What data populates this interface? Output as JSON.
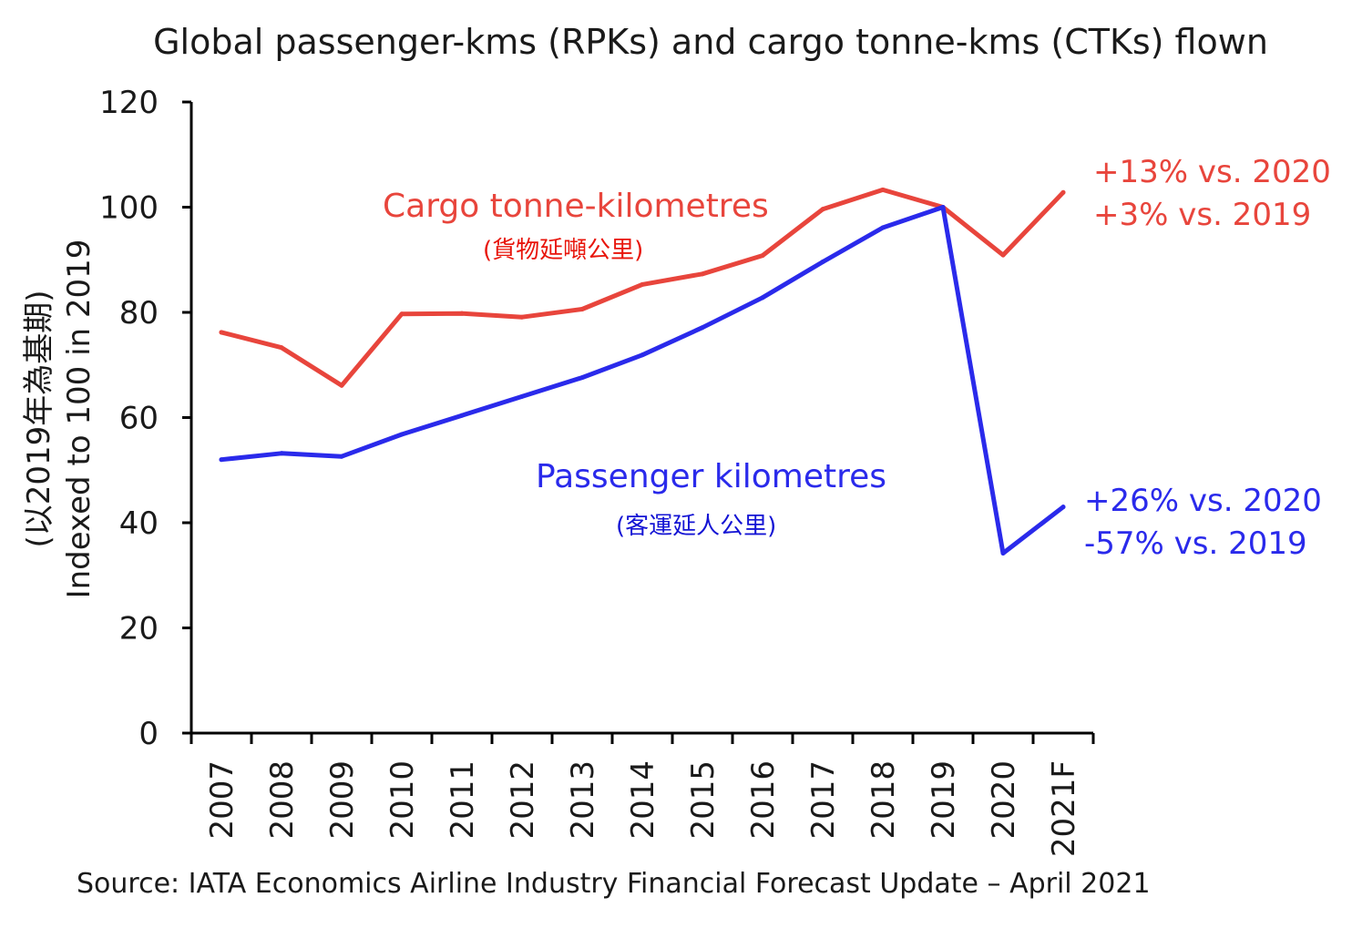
{
  "chart_data": {
    "type": "line",
    "title": "Global passenger-kms (RPKs) and cargo tonne-kms (CTKs) flown",
    "ylabel": "(以2019年為基期) Indexed to 100 in 2019",
    "ylabel_lines": [
      "(以2019年為基期)",
      "Indexed to 100 in 2019"
    ],
    "ylim": [
      0,
      120
    ],
    "yticks": [
      0,
      20,
      40,
      60,
      80,
      100,
      120
    ],
    "categories": [
      "2007",
      "2008",
      "2009",
      "2010",
      "2011",
      "2012",
      "2013",
      "2014",
      "2015",
      "2016",
      "2017",
      "2018",
      "2019",
      "2020",
      "2021F"
    ],
    "grid": false,
    "series": [
      {
        "name": "Cargo tonne-kilometres",
        "name_cn": "(貨物延噸公里)",
        "color": "#e8453c",
        "values": [
          76.2,
          73.3,
          66.1,
          79.7,
          79.8,
          79.1,
          80.6,
          85.3,
          87.3,
          90.8,
          99.6,
          103.3,
          100,
          90.9,
          102.8
        ],
        "annotation": [
          "+13% vs. 2020",
          "+3% vs. 2019"
        ]
      },
      {
        "name": "Passenger kilometres",
        "name_cn": "(客運延人公里)",
        "color": "#2a2aeb",
        "values": [
          52.0,
          53.2,
          52.6,
          56.8,
          60.4,
          64.0,
          67.6,
          71.9,
          77.1,
          82.8,
          89.6,
          96.1,
          100,
          34.2,
          43.0
        ],
        "annotation": [
          "+26% vs. 2020",
          "-57% vs. 2019"
        ]
      }
    ],
    "source": "Source: IATA Economics Airline Industry Financial Forecast Update – April 2021"
  }
}
